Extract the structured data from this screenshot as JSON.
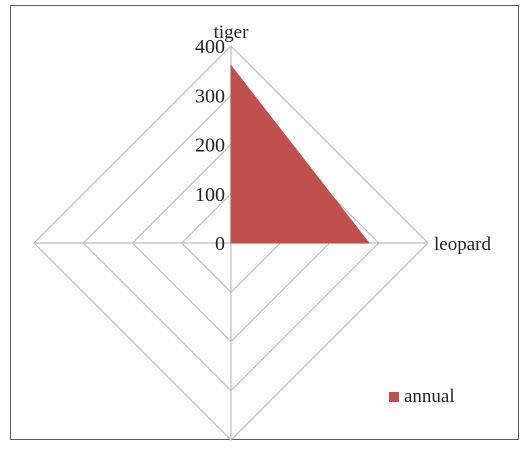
{
  "chart_data": {
    "type": "radar",
    "title": "",
    "axes": [
      "tiger",
      "leopard",
      "",
      ""
    ],
    "radial_ticks": [
      "0",
      "100",
      "200",
      "300",
      "400"
    ],
    "rmax": 400,
    "grid": true,
    "legend_position": "bottom-right",
    "series": [
      {
        "name": "annual",
        "values": [
          360,
          280,
          0,
          0
        ],
        "color": "#c0504d"
      }
    ]
  }
}
